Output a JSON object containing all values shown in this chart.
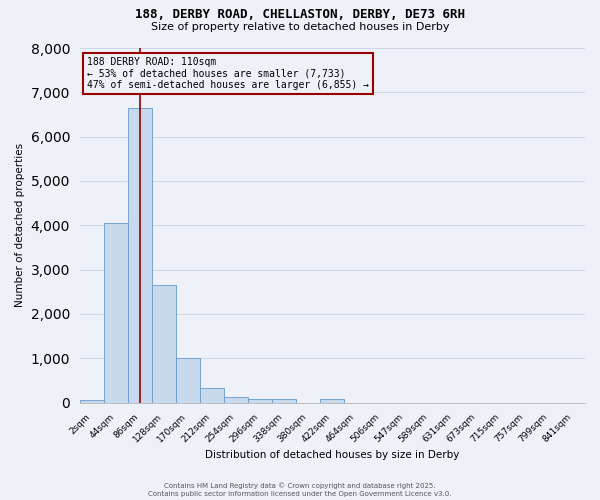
{
  "title1": "188, DERBY ROAD, CHELLASTON, DERBY, DE73 6RH",
  "title2": "Size of property relative to detached houses in Derby",
  "xlabel": "Distribution of detached houses by size in Derby",
  "ylabel": "Number of detached properties",
  "categories": [
    "2sqm",
    "44sqm",
    "86sqm",
    "128sqm",
    "170sqm",
    "212sqm",
    "254sqm",
    "296sqm",
    "338sqm",
    "380sqm",
    "422sqm",
    "464sqm",
    "506sqm",
    "547sqm",
    "589sqm",
    "631sqm",
    "673sqm",
    "715sqm",
    "757sqm",
    "799sqm",
    "841sqm"
  ],
  "values": [
    55,
    4050,
    6650,
    2650,
    1010,
    330,
    120,
    80,
    80,
    0,
    80,
    0,
    0,
    0,
    0,
    0,
    0,
    0,
    0,
    0,
    0
  ],
  "bar_color": "#c8d8ed",
  "bar_edge_color": "#6699cc",
  "vline_x_idx": 2,
  "vline_color": "#990000",
  "annotation_line1": "188 DERBY ROAD: 110sqm",
  "annotation_line2": "← 53% of detached houses are smaller (7,733)",
  "annotation_line3": "47% of semi-detached houses are larger (6,855) →",
  "ylim": [
    0,
    8000
  ],
  "yticks": [
    0,
    1000,
    2000,
    3000,
    4000,
    5000,
    6000,
    7000,
    8000
  ],
  "bg_color": "#eef2f8",
  "grid_color": "#d0d8e8",
  "footer1": "Contains HM Land Registry data © Crown copyright and database right 2025.",
  "footer2": "Contains public sector information licensed under the Open Government Licence v3.0."
}
